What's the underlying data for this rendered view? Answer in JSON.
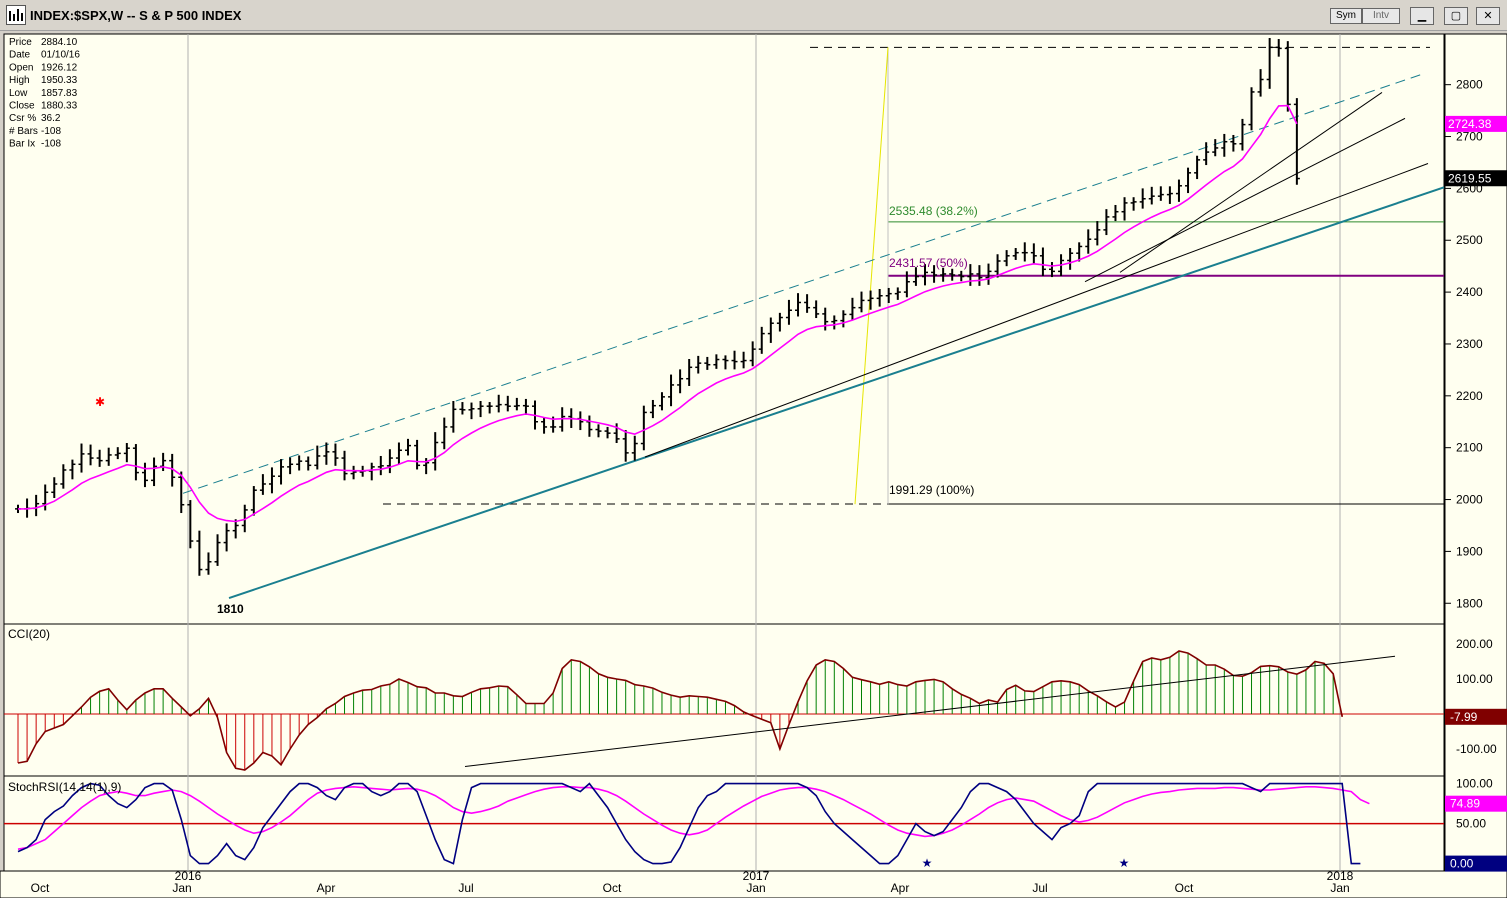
{
  "window": {
    "title": "INDEX:$SPX,W -- S & P 500 INDEX",
    "sym_label": "Sym",
    "intv_label": "Intv",
    "min_glyph": "▁",
    "max_glyph": "▢",
    "close_glyph": "✕"
  },
  "data_window": [
    {
      "k": "Price",
      "v": "2884.10"
    },
    {
      "k": "Date",
      "v": "01/10/16"
    },
    {
      "k": "Open",
      "v": "1926.12"
    },
    {
      "k": "High",
      "v": "1950.33"
    },
    {
      "k": "Low",
      "v": "1857.83"
    },
    {
      "k": "Close",
      "v": "1880.33"
    },
    {
      "k": "Csr %",
      "v": "36.2"
    },
    {
      "k": "# Bars",
      "v": "-108"
    },
    {
      "k": "Bar Ix",
      "v": "-108"
    }
  ],
  "colors": {
    "background": "#fffff0",
    "bars": "#000000",
    "ma": "#ff00ff",
    "trend": "#1a7f8f",
    "fib_38": "#2e8b2e",
    "fib_50": "#800080",
    "cci_pos": "#008000",
    "cci_neg": "#cc0000",
    "cci_line": "#800000",
    "stoch_k": "#000080",
    "stoch_d": "#ff00ff",
    "zero_line": "#cc0000",
    "fib_vline": "#e6e600",
    "star_red": "#ff0000",
    "star_blue": "#000080"
  },
  "chart_data": [
    {
      "type": "ohlc",
      "panel": "price",
      "ylim": [
        1760,
        2890
      ],
      "ticks": [
        1800,
        1900,
        2000,
        2100,
        2200,
        2300,
        2400,
        2500,
        2600,
        2700,
        2800
      ],
      "x_labels": [
        "Oct",
        "2016",
        "Jan",
        "Apr",
        "Jul",
        "Oct",
        "2017",
        "Jan",
        "Apr",
        "Jul",
        "Oct",
        "2018",
        "Jan"
      ],
      "annotations": {
        "low_label": "1810",
        "fib_38": "2535.48 (38.2%)",
        "fib_50": "2431.57 (50%)",
        "fib_100": "1991.29 (100%)"
      },
      "price_badges": {
        "ma": "2724.38",
        "last": "2619.55"
      },
      "fib_levels": {
        "fib_38": 2535.48,
        "fib_50": 2431.57,
        "fib_100": 1991.29
      },
      "closes": [
        1982,
        1983,
        1992,
        2014,
        2030,
        2057,
        2068,
        2088,
        2080,
        2075,
        2086,
        2089,
        2099,
        2052,
        2037,
        2064,
        2075,
        2043,
        1990,
        1920,
        1865,
        1880,
        1917,
        1940,
        1950,
        1980,
        2018,
        2030,
        2045,
        2063,
        2068,
        2074,
        2066,
        2084,
        2092,
        2080,
        2050,
        2053,
        2055,
        2063,
        2065,
        2080,
        2095,
        2104,
        2066,
        2071,
        2110,
        2140,
        2174,
        2173,
        2175,
        2180,
        2180,
        2183,
        2180,
        2181,
        2180,
        2150,
        2140,
        2140,
        2160,
        2156,
        2150,
        2135,
        2132,
        2128,
        2117,
        2090,
        2108,
        2168,
        2181,
        2198,
        2221,
        2233,
        2255,
        2263,
        2260,
        2270,
        2268,
        2266,
        2268,
        2290,
        2320,
        2340,
        2351,
        2365,
        2380,
        2370,
        2358,
        2343,
        2345,
        2357,
        2370,
        2384,
        2388,
        2393,
        2397,
        2400,
        2420,
        2430,
        2438,
        2433,
        2435,
        2433,
        2430,
        2435,
        2428,
        2440,
        2460,
        2470,
        2476,
        2476,
        2470,
        2444,
        2440,
        2461,
        2475,
        2488,
        2502,
        2520,
        2545,
        2555,
        2572,
        2574,
        2580,
        2585,
        2588,
        2590,
        2605,
        2630,
        2655,
        2670,
        2678,
        2690,
        2686,
        2723,
        2786,
        2810,
        2872,
        2870,
        2762,
        2619
      ],
      "ma_current": 2724.38,
      "ma_start": 1982
    },
    {
      "type": "bar",
      "panel": "cci",
      "title": "CCI(20)",
      "ylim": [
        -160,
        240
      ],
      "ticks": [
        -100,
        100,
        200
      ],
      "last": "-7.99",
      "values": [
        -140,
        -135,
        -85,
        -50,
        -40,
        -30,
        -5,
        20,
        48,
        65,
        72,
        40,
        12,
        40,
        60,
        72,
        72,
        45,
        20,
        -5,
        15,
        45,
        -10,
        -110,
        -155,
        -160,
        -140,
        -110,
        -120,
        -145,
        -100,
        -60,
        -30,
        -10,
        15,
        30,
        50,
        60,
        68,
        70,
        80,
        85,
        100,
        90,
        78,
        75,
        60,
        60,
        52,
        50,
        62,
        72,
        75,
        80,
        78,
        55,
        30,
        30,
        30,
        60,
        130,
        155,
        150,
        135,
        115,
        105,
        100,
        96,
        84,
        80,
        74,
        62,
        54,
        48,
        52,
        50,
        48,
        42,
        36,
        24,
        6,
        -5,
        -15,
        -25,
        -100,
        -30,
        35,
        95,
        140,
        155,
        150,
        130,
        105,
        98,
        92,
        85,
        92,
        84,
        80,
        92,
        96,
        99,
        92,
        72,
        56,
        45,
        30,
        40,
        34,
        70,
        82,
        66,
        64,
        78,
        92,
        95,
        92,
        84,
        66,
        52,
        35,
        20,
        34,
        94,
        150,
        160,
        155,
        162,
        180,
        174,
        158,
        140,
        140,
        128,
        110,
        108,
        118,
        136,
        138,
        135,
        120,
        114,
        126,
        150,
        145,
        115,
        -7.99
      ]
    },
    {
      "type": "line",
      "panel": "stochrsi",
      "title": "StochRSI(14,14(1),9)",
      "ylim": [
        -3,
        102
      ],
      "ticks": [
        50,
        100
      ],
      "last_d": "74.89",
      "last_k": "0.00",
      "series": [
        {
          "name": "%K",
          "values": [
            15,
            20,
            30,
            55,
            65,
            72,
            85,
            95,
            100,
            98,
            85,
            75,
            70,
            80,
            95,
            100,
            100,
            92,
            55,
            10,
            0,
            0,
            10,
            25,
            10,
            5,
            20,
            45,
            60,
            75,
            90,
            100,
            100,
            95,
            85,
            80,
            95,
            100,
            100,
            90,
            85,
            90,
            100,
            100,
            90,
            60,
            30,
            5,
            0,
            55,
            95,
            100,
            100,
            100,
            100,
            100,
            100,
            100,
            100,
            100,
            100,
            95,
            90,
            100,
            85,
            70,
            50,
            30,
            15,
            5,
            0,
            0,
            2,
            20,
            45,
            70,
            85,
            90,
            100,
            100,
            100,
            100,
            100,
            100,
            100,
            100,
            100,
            95,
            85,
            65,
            50,
            40,
            30,
            20,
            10,
            0,
            0,
            10,
            30,
            50,
            40,
            35,
            40,
            55,
            70,
            90,
            100,
            100,
            95,
            90,
            80,
            65,
            50,
            40,
            30,
            45,
            50,
            60,
            90,
            100,
            100,
            100,
            100,
            100,
            100,
            100,
            100,
            100,
            100,
            100,
            100,
            100,
            100,
            100,
            100,
            100,
            95,
            90,
            100,
            100,
            100,
            100,
            100,
            100,
            100,
            100,
            100,
            0,
            0
          ]
        },
        {
          "name": "%D",
          "values": [
            18,
            20,
            25,
            30,
            40,
            50,
            60,
            70,
            78,
            85,
            88,
            90,
            88,
            85,
            85,
            88,
            90,
            92,
            90,
            85,
            78,
            70,
            62,
            55,
            48,
            42,
            38,
            40,
            45,
            52,
            60,
            70,
            80,
            88,
            92,
            94,
            95,
            96,
            95,
            94,
            93,
            92,
            93,
            94,
            93,
            90,
            85,
            78,
            70,
            65,
            63,
            65,
            68,
            72,
            78,
            82,
            86,
            90,
            93,
            95,
            96,
            96,
            95,
            95,
            93,
            90,
            85,
            78,
            70,
            62,
            55,
            48,
            42,
            38,
            36,
            38,
            42,
            50,
            58,
            65,
            72,
            78,
            84,
            88,
            92,
            94,
            95,
            95,
            93,
            90,
            85,
            80,
            74,
            68,
            62,
            55,
            48,
            42,
            38,
            36,
            34,
            35,
            38,
            42,
            48,
            55,
            62,
            70,
            76,
            80,
            82,
            80,
            78,
            72,
            66,
            60,
            55,
            52,
            54,
            58,
            64,
            70,
            76,
            80,
            84,
            87,
            89,
            90,
            92,
            93,
            94,
            94,
            94,
            95,
            95,
            94,
            93,
            92,
            92,
            93,
            94,
            95,
            96,
            96,
            95,
            94,
            92,
            90,
            80,
            74.89
          ]
        }
      ],
      "stars": [
        "Apr",
        "Aug"
      ]
    }
  ]
}
